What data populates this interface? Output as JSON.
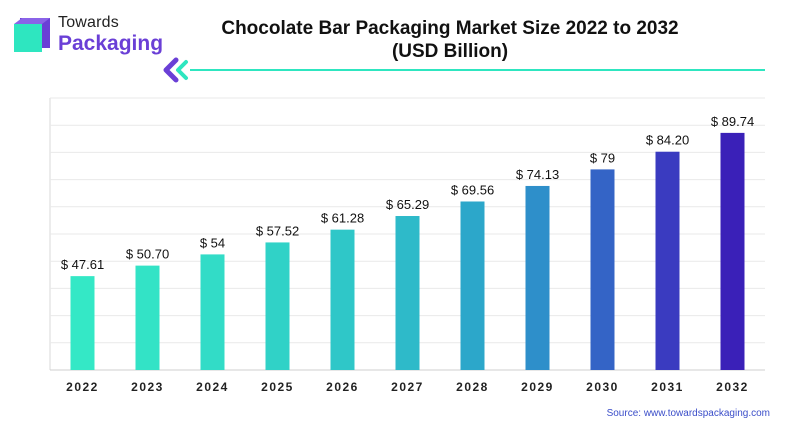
{
  "logo": {
    "line1": "Towards",
    "line2": "Packaging",
    "colors": {
      "teal": "#2ee6c0",
      "purple": "#6a3fd6"
    }
  },
  "header": {
    "title_line1": "Chocolate Bar Packaging Market Size 2022 to 2032",
    "title_line2": "(USD Billion)"
  },
  "chart_data": {
    "type": "bar",
    "categories": [
      "2022",
      "2023",
      "2024",
      "2025",
      "2026",
      "2027",
      "2028",
      "2029",
      "2030",
      "2031",
      "2032"
    ],
    "values": [
      47.61,
      50.7,
      54,
      57.52,
      61.28,
      65.29,
      69.56,
      74.13,
      79,
      84.2,
      89.74
    ],
    "value_labels": [
      "$ 47.61",
      "$ 50.70",
      "$ 54",
      "$ 57.52",
      "$ 61.28",
      "$ 65.29",
      "$ 69.56",
      "$ 74.13",
      "$ 79",
      "$ 84.20",
      "$ 89.74"
    ],
    "ylim": [
      20,
      100
    ],
    "grid": true,
    "colors": [
      "#34e8c6",
      "#33e3c6",
      "#32dcc7",
      "#30d2c7",
      "#2fc7c8",
      "#2ebac9",
      "#2ca7ca",
      "#2e8fca",
      "#3464c6",
      "#3a3bc0",
      "#3a20b8"
    ]
  },
  "footer": {
    "source": "Source: www.towardspackaging.com"
  }
}
